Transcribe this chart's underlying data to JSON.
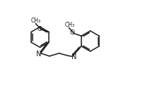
{
  "bg_color": "#ffffff",
  "line_color": "#1a1a1a",
  "line_width": 1.1,
  "font_size": 7.0,
  "figsize": [
    2.12,
    1.48
  ],
  "dpi": 100,
  "xlim": [
    0,
    10.5
  ],
  "ylim": [
    0,
    7.0
  ]
}
